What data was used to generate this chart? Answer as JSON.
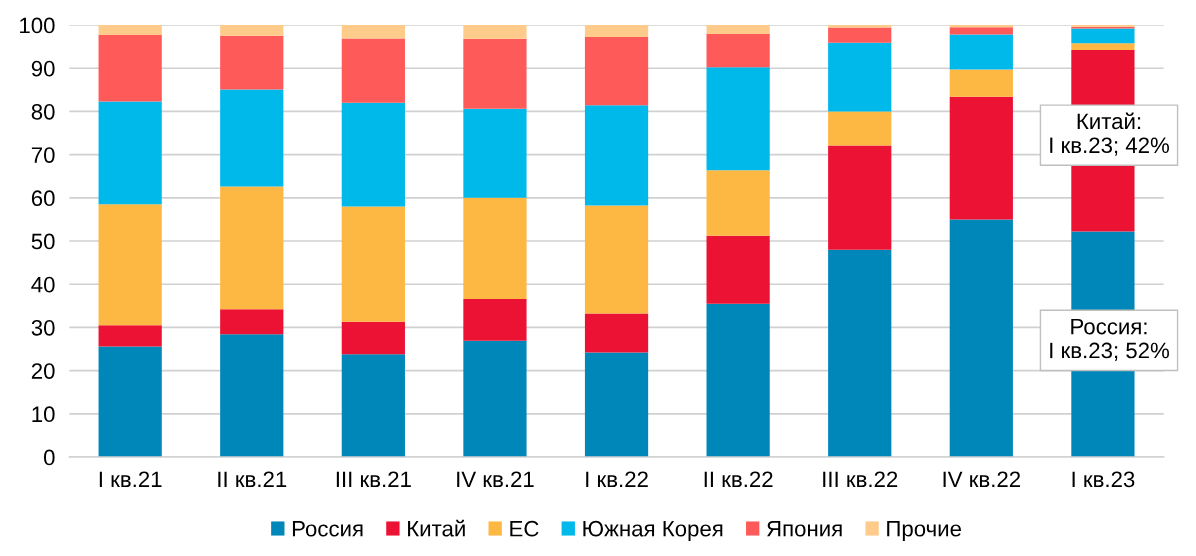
{
  "chart_data": {
    "type": "bar",
    "stacked": true,
    "categories": [
      "I кв.21",
      "II кв.21",
      "III кв.21",
      "IV кв.21",
      "I кв.22",
      "II кв.22",
      "III кв.22",
      "IV кв.22",
      "I кв.23"
    ],
    "series": [
      {
        "name": "Россия",
        "color": "#0087ba",
        "values": [
          25.6,
          28.4,
          23.8,
          26.9,
          24.2,
          35.5,
          48.0,
          55.0,
          52.2
        ]
      },
      {
        "name": "Китай",
        "color": "#ec1233",
        "values": [
          4.9,
          5.8,
          7.5,
          9.7,
          9.0,
          15.7,
          24.1,
          28.4,
          42.0
        ]
      },
      {
        "name": "ЕС",
        "color": "#fdb743",
        "values": [
          28.0,
          28.4,
          26.7,
          23.4,
          25.0,
          15.2,
          7.9,
          6.3,
          1.6
        ]
      },
      {
        "name": "Южная Корея",
        "color": "#00b9eb",
        "values": [
          23.8,
          22.5,
          24.0,
          20.6,
          23.2,
          23.8,
          15.9,
          8.1,
          3.4
        ]
      },
      {
        "name": "Япония",
        "color": "#fe5a5a",
        "values": [
          15.4,
          12.4,
          14.9,
          16.2,
          15.8,
          7.7,
          3.5,
          1.7,
          0.4
        ]
      },
      {
        "name": "Прочие",
        "color": "#fecb8a",
        "values": [
          2.3,
          2.5,
          3.1,
          3.2,
          2.8,
          2.1,
          0.6,
          0.5,
          0.4
        ]
      }
    ],
    "ylim": [
      0,
      100
    ],
    "yticks": [
      0,
      10,
      20,
      30,
      40,
      50,
      60,
      70,
      80,
      90,
      100
    ],
    "grid": "y",
    "legend": "bottom",
    "annotations": [
      "Китай:\nI кв.23; 42%",
      "Россия:\nI кв.23; 52%"
    ]
  }
}
